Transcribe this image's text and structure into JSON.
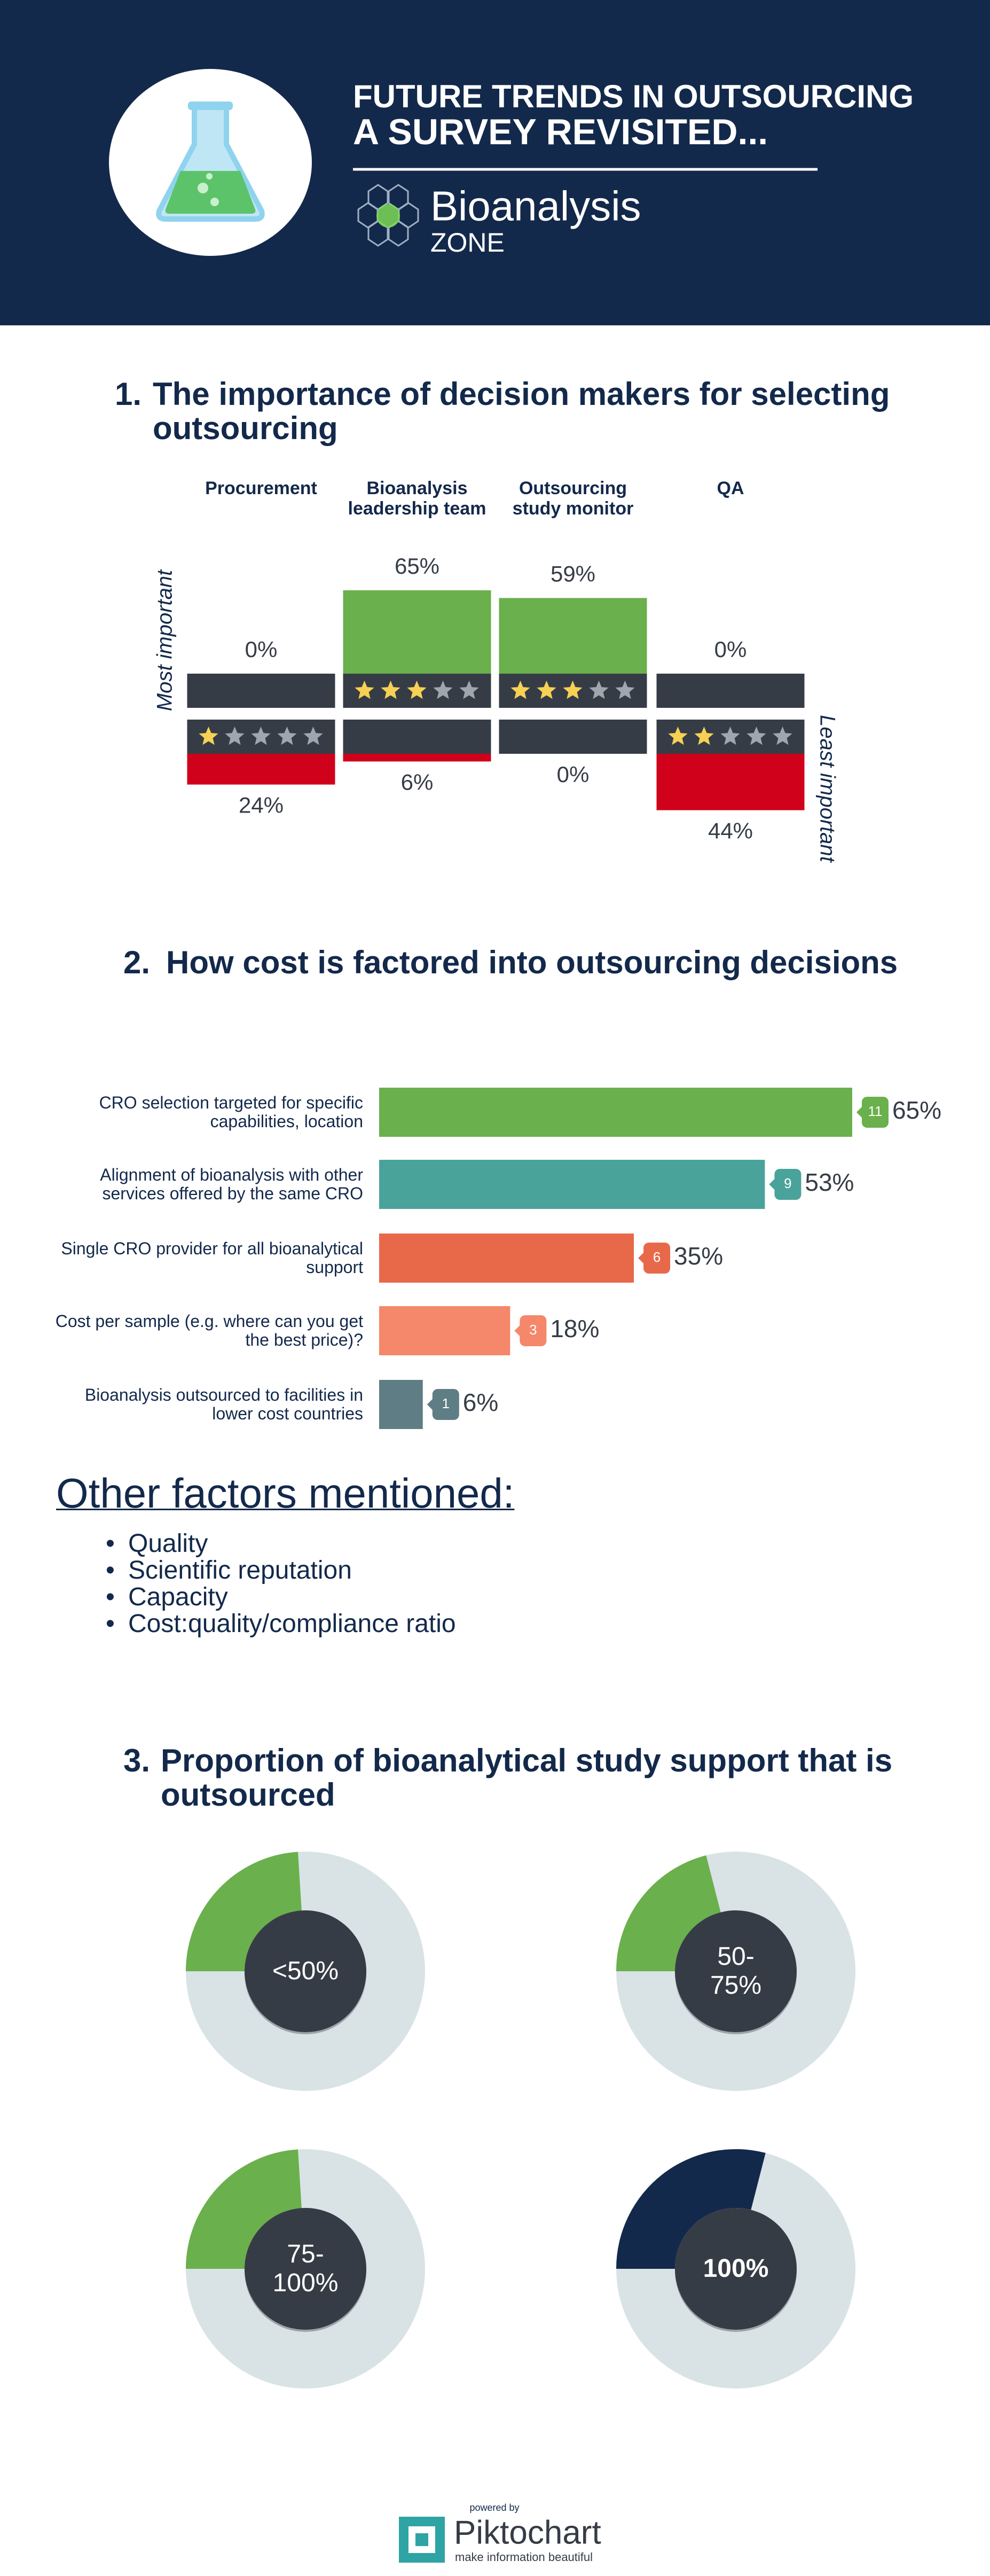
{
  "header": {
    "title": [
      "FUTURE TRENDS IN OUTSOURCING",
      "A SURVEY REVISITED..."
    ],
    "logo_text": "Bioanalysis",
    "logo_subtext": "ZONE"
  },
  "chart_data": [
    {
      "type": "rating-bar",
      "number": "1.",
      "title": "The importance of decision makers for selecting outsourcing",
      "categories": [
        "Procurement",
        "Bioanalysis leadership team",
        "Outsourcing study monitor",
        "QA"
      ],
      "top_label": "Most important",
      "bottom_label": "Least important",
      "series": [
        {
          "color": "#6ab04c",
          "values": [
            0,
            65,
            59,
            0
          ],
          "value_labels": [
            "0%",
            "65%",
            "59%",
            "0%"
          ],
          "stars": [
            0,
            3,
            3,
            0
          ]
        },
        {
          "color": "#d0021b",
          "values": [
            24,
            6,
            0,
            44
          ],
          "value_labels": [
            "24%",
            "6%",
            "0%",
            "44%"
          ],
          "stars": [
            1,
            0,
            0,
            2
          ]
        }
      ]
    },
    {
      "type": "hbar",
      "number": "2.",
      "title": "How cost is factored into outsourcing decisions",
      "categories": [
        "CRO selection targeted for specific capabilities, location",
        "Alignment of bioanalysis with other services offered by the same CRO",
        "Single CRO provider for all bioanalytical support",
        "Cost per sample (e.g. where can you get the best price)?",
        "Bioanalysis outsourced to facilities in lower cost countries"
      ],
      "values": [
        65,
        53,
        35,
        18,
        6
      ],
      "value_labels": [
        "65%",
        "53%",
        "35%",
        "18%",
        "6%"
      ],
      "counts": [
        11,
        9,
        6,
        3,
        1
      ],
      "colors": [
        "#6ab04c",
        "#4aa39a",
        "#e8694a",
        "#f5876a",
        "#5f7d85"
      ]
    },
    {
      "type": "donut",
      "number": "3.",
      "title": "Proportion of bioanalytical study support that is outsourced",
      "categories": [
        "<50%",
        "50-75%",
        "75-100%",
        "100%"
      ],
      "values": [
        24,
        21,
        24,
        29
      ],
      "colors": [
        "#6ab04c",
        "#6ab04c",
        "#6ab04c",
        "#13294b"
      ],
      "rest_color": "#d9e3e5"
    }
  ],
  "other_factors": {
    "title": "Other factors mentioned:",
    "items": [
      "Quality",
      "Scientific reputation",
      "Capacity",
      "Cost:quality/compliance ratio"
    ]
  },
  "footer": {
    "powered_by": "powered by",
    "brand": "Piktochart",
    "tagline": "make information beautiful"
  }
}
